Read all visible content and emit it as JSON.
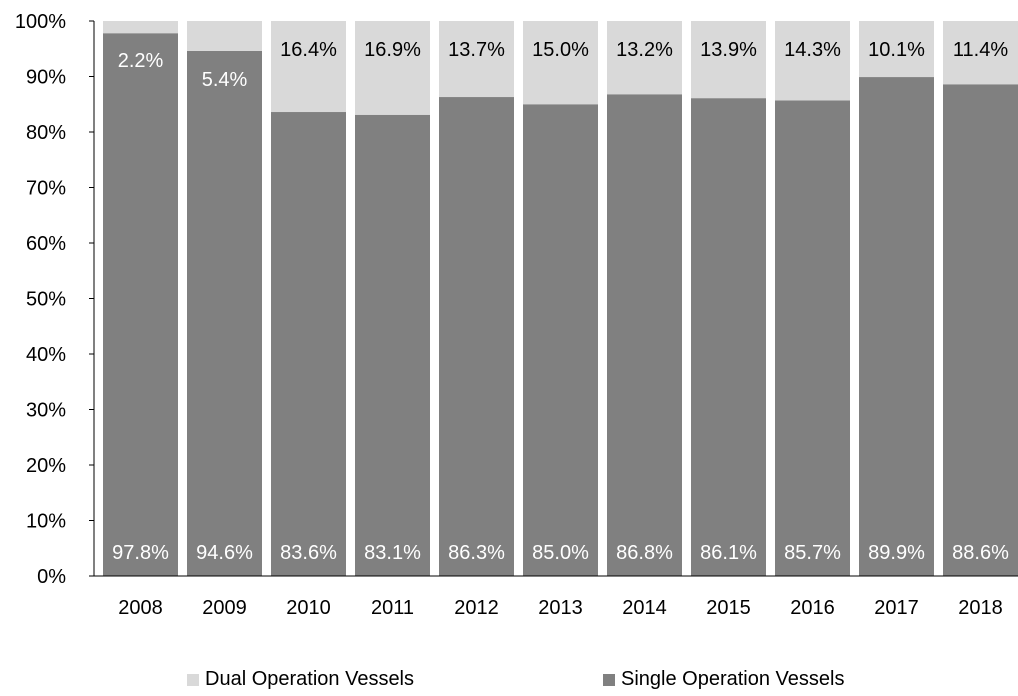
{
  "chart_data": {
    "type": "bar",
    "stacked": true,
    "percent_stacked": true,
    "categories": [
      "2008",
      "2009",
      "2010",
      "2011",
      "2012",
      "2013",
      "2014",
      "2015",
      "2016",
      "2017",
      "2018"
    ],
    "series": [
      {
        "name": "Single Operation Vessels",
        "color": "#808080",
        "values": [
          97.8,
          94.6,
          83.6,
          83.1,
          86.3,
          85.0,
          86.8,
          86.1,
          85.7,
          89.9,
          88.6
        ],
        "labels": [
          "97.8%",
          "94.6%",
          "83.6%",
          "83.1%",
          "86.3%",
          "85.0%",
          "86.8%",
          "86.1%",
          "85.7%",
          "89.9%",
          "88.6%"
        ]
      },
      {
        "name": "Dual Operation Vessels",
        "color": "#d9d9d9",
        "values": [
          2.2,
          5.4,
          16.4,
          16.9,
          13.7,
          15.0,
          13.2,
          13.9,
          14.3,
          10.1,
          11.4
        ],
        "labels": [
          "2.2%",
          "5.4%",
          "16.4%",
          "16.9%",
          "13.7%",
          "15.0%",
          "13.2%",
          "13.9%",
          "14.3%",
          "10.1%",
          "11.4%"
        ]
      }
    ],
    "ylim": [
      0,
      100
    ],
    "yticks": [
      "0%",
      "10%",
      "20%",
      "30%",
      "40%",
      "50%",
      "60%",
      "70%",
      "80%",
      "90%",
      "100%"
    ],
    "grid": false,
    "legend_position": "bottom"
  },
  "legend": {
    "dual_label": "Dual Operation Vessels",
    "single_label": "Single Operation Vessels"
  }
}
